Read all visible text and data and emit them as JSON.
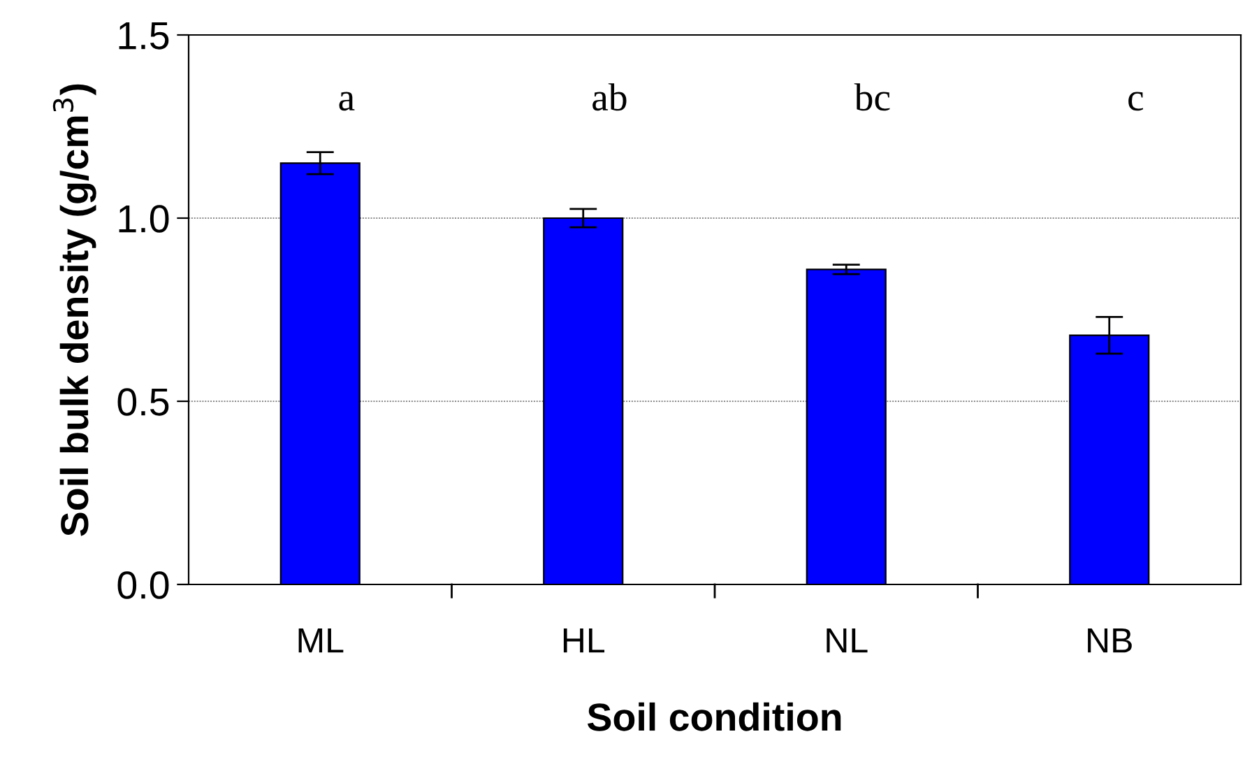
{
  "chart_data": {
    "type": "bar",
    "xlabel": "Soil condition",
    "ylabel": "Soil bulk density (g/cm$^{3}$)",
    "categories": [
      "ML",
      "HL",
      "NL",
      "NB"
    ],
    "values": [
      1.15,
      1.0,
      0.86,
      0.68
    ],
    "errors": [
      0.03,
      0.025,
      0.013,
      0.05
    ],
    "color": "#0000ff",
    "ylim": [
      0,
      1.5
    ],
    "yticks": [
      {
        "value": 0,
        "label": "0.0"
      },
      {
        "value": 0.5,
        "label": "0.5"
      },
      {
        "value": 1.0,
        "label": "1.0"
      },
      {
        "value": 1.5,
        "label": "1.5"
      }
    ],
    "grid": "y",
    "annotations": [
      "a",
      "ab",
      "bc",
      "c"
    ]
  }
}
